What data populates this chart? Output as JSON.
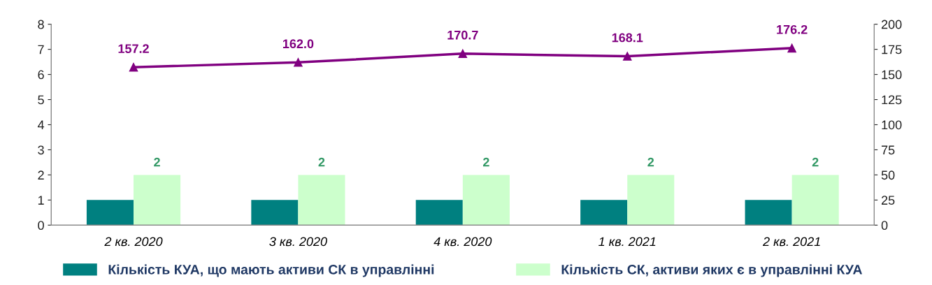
{
  "chart_data": {
    "type": "bar",
    "categories": [
      "2 кв. 2020",
      "3 кв. 2020",
      "4 кв. 2020",
      "1 кв. 2021",
      "2 кв. 2021"
    ],
    "series": [
      {
        "name": "Кількість КУА, що мають активи СК в управлінні",
        "color": "#008080",
        "values": [
          1,
          1,
          1,
          1,
          1
        ]
      },
      {
        "name": "Кількість СК, активи яких є в управлінні КУА",
        "color": "#ccffcc",
        "values": [
          2,
          2,
          2,
          2,
          2
        ],
        "value_labels": [
          "2",
          "2",
          "2",
          "2",
          "2"
        ]
      },
      {
        "type": "line",
        "axis": "y2",
        "color": "#800080",
        "marker": "triangle",
        "values": [
          157.2,
          162.0,
          170.7,
          168.1,
          176.2
        ],
        "value_labels": [
          "157.2",
          "162.0",
          "170.7",
          "168.1",
          "176.2"
        ]
      }
    ],
    "ylim": [
      0,
      8
    ],
    "yticks": [
      0,
      1,
      2,
      3,
      4,
      5,
      6,
      7,
      8
    ],
    "y2lim": [
      0,
      200
    ],
    "y2ticks": [
      0,
      25,
      50,
      75,
      100,
      125,
      150,
      175,
      200
    ],
    "grid": false,
    "legend": "bottom"
  }
}
